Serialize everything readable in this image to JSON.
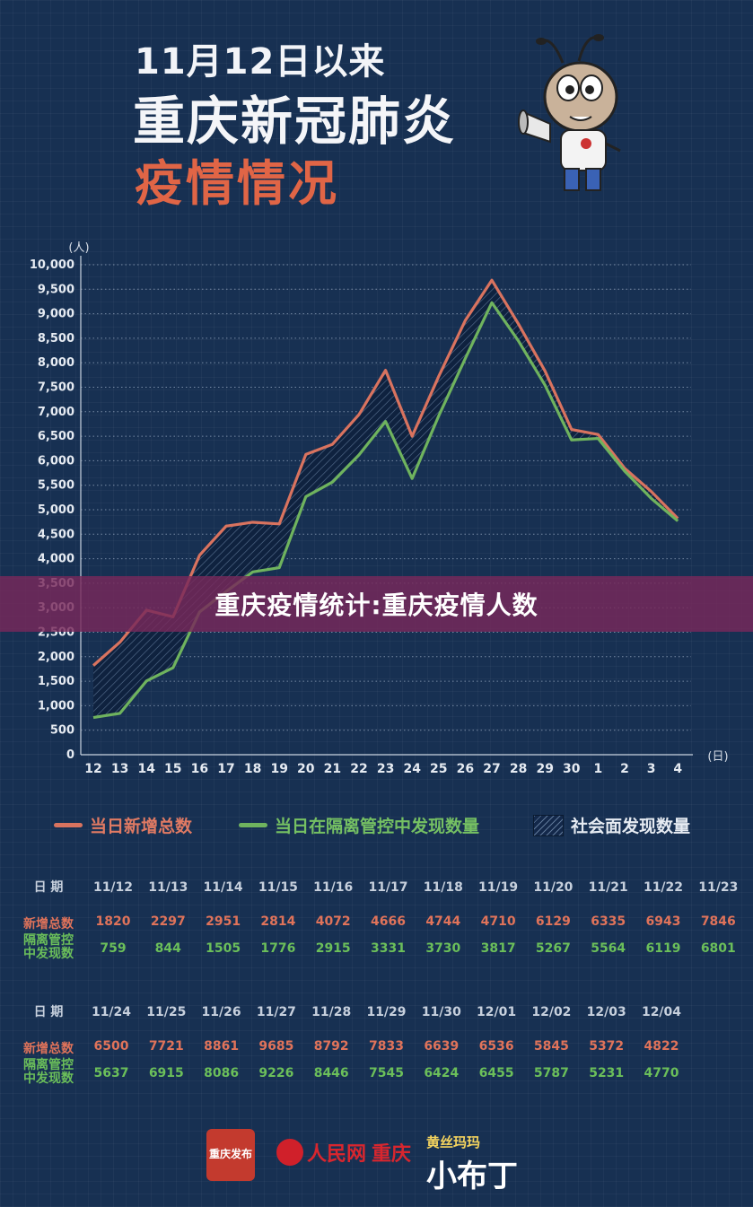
{
  "header": {
    "subtitle": "11月12日以来",
    "title": "重庆新冠肺炎",
    "title2": "疫情情况"
  },
  "banner": {
    "text": "重庆疫情统计:重庆疫情人数"
  },
  "chart_data": {
    "type": "line",
    "y_unit": "(人)",
    "x_unit": "(日)",
    "ylim": [
      0,
      10000
    ],
    "y_ticks": [
      "0",
      "500",
      "1,000",
      "1,500",
      "2,000",
      "2,500",
      "3,000",
      "3,500",
      "4,000",
      "4,500",
      "5,000",
      "5,500",
      "6,000",
      "6,500",
      "7,000",
      "7,500",
      "8,000",
      "8,500",
      "9,000",
      "9,500",
      "10,000"
    ],
    "categories": [
      "12",
      "13",
      "14",
      "15",
      "16",
      "17",
      "18",
      "19",
      "20",
      "21",
      "22",
      "23",
      "24",
      "25",
      "26",
      "27",
      "28",
      "29",
      "30",
      "1",
      "2",
      "3",
      "4"
    ],
    "series": [
      {
        "name": "当日新增总数",
        "color": "#d9735f",
        "values": [
          1820,
          2297,
          2951,
          2814,
          4072,
          4666,
          4744,
          4710,
          6129,
          6335,
          6943,
          7846,
          6500,
          7721,
          8861,
          9685,
          8792,
          7833,
          6639,
          6536,
          5845,
          5372,
          4822
        ]
      },
      {
        "name": "当日在隔离管控中发现数量",
        "color": "#6fb35e",
        "values": [
          759,
          844,
          1505,
          1776,
          2915,
          3331,
          3730,
          3817,
          5267,
          5564,
          6119,
          6801,
          5637,
          6915,
          8086,
          9226,
          8446,
          7545,
          6424,
          6455,
          5787,
          5231,
          4770
        ]
      }
    ],
    "area_label": "社会面发现数量",
    "grid": true
  },
  "legend": {
    "new_total": "当日新增总数",
    "isolated": "当日在隔离管控中发现数量",
    "community": "社会面发现数量"
  },
  "table": {
    "labels": {
      "date": "日 期",
      "new": "新增总数",
      "iso_1": "隔离管控",
      "iso_2": "中发现数"
    },
    "part1": {
      "dates": [
        "11/12",
        "11/13",
        "11/14",
        "11/15",
        "11/16",
        "11/17",
        "11/18",
        "11/19",
        "11/20",
        "11/21",
        "11/22",
        "11/23"
      ],
      "new": [
        "1820",
        "2297",
        "2951",
        "2814",
        "4072",
        "4666",
        "4744",
        "4710",
        "6129",
        "6335",
        "6943",
        "7846"
      ],
      "iso": [
        "759",
        "844",
        "1505",
        "1776",
        "2915",
        "3331",
        "3730",
        "3817",
        "5267",
        "5564",
        "6119",
        "6801"
      ]
    },
    "part2": {
      "dates": [
        "11/24",
        "11/25",
        "11/26",
        "11/27",
        "11/28",
        "11/29",
        "11/30",
        "12/01",
        "12/02",
        "12/03",
        "12/04"
      ],
      "new": [
        "6500",
        "7721",
        "8861",
        "9685",
        "8792",
        "7833",
        "6639",
        "6536",
        "5845",
        "5372",
        "4822"
      ],
      "iso": [
        "5637",
        "6915",
        "8086",
        "9226",
        "8446",
        "7545",
        "6424",
        "6455",
        "5787",
        "5231",
        "4770"
      ]
    }
  },
  "footer": {
    "logo1": "重庆发布",
    "logo2_main": "人民网",
    "logo2_city": "重庆",
    "logo3_small": "黄丝玛玛",
    "logo3_main": "小布丁"
  },
  "colors": {
    "background": "#173052",
    "accent_red": "#e06546",
    "accent_green": "#6bbf5a"
  }
}
